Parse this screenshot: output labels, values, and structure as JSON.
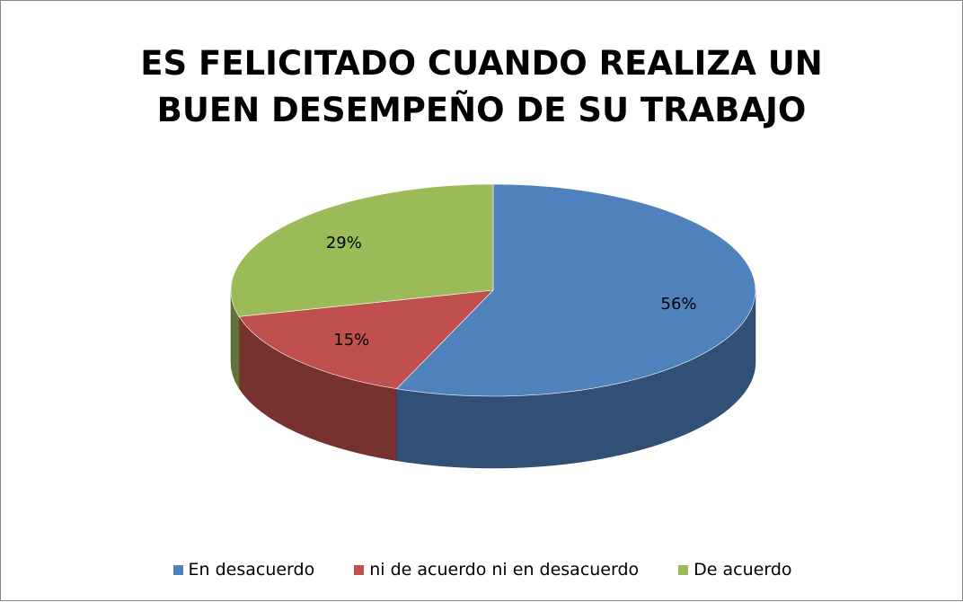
{
  "chart_data": {
    "type": "pie3d",
    "title": "ES FELICITADO CUANDO REALIZA UN BUEN DESEMPEÑO DE SU TRABAJO",
    "categories": [
      "En desacuerdo",
      "ni de acuerdo ni en desacuerdo",
      "De acuerdo"
    ],
    "values": [
      56,
      15,
      29
    ],
    "value_labels": [
      "56%",
      "15%",
      "29%"
    ],
    "colors": [
      "#4f81bd",
      "#c0504d",
      "#9bbb59"
    ],
    "legend": "bottom"
  }
}
